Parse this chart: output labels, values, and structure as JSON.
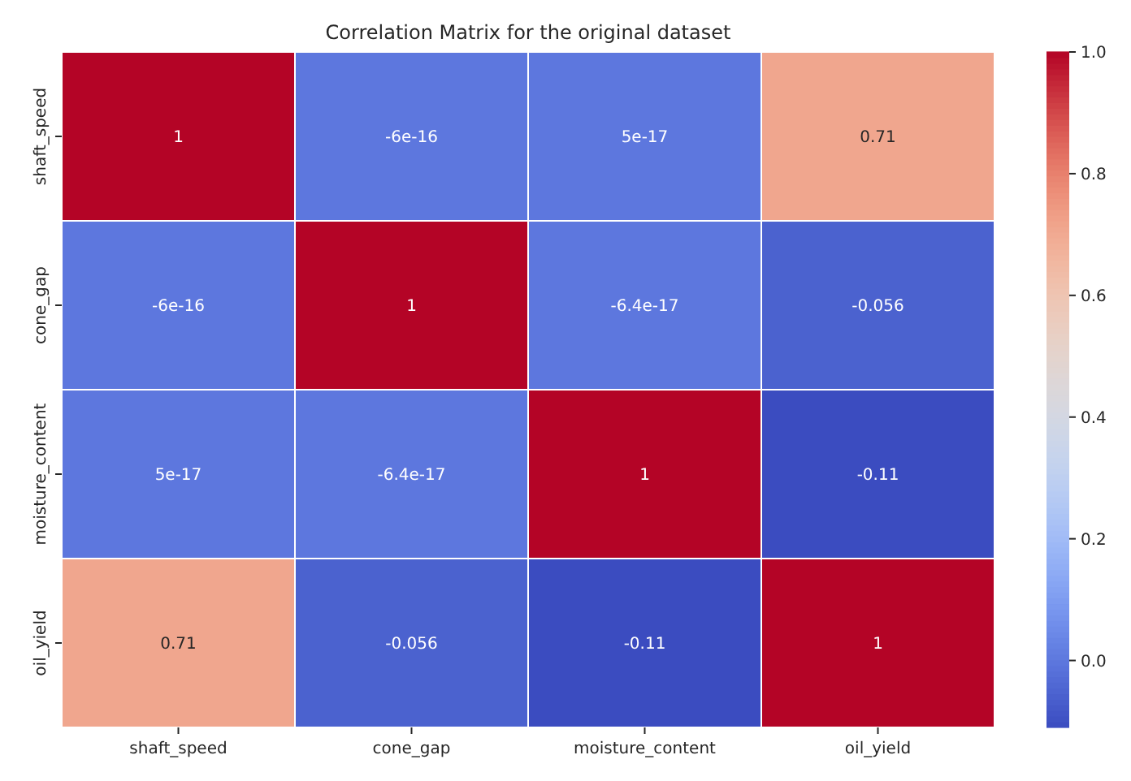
{
  "chart_data": {
    "type": "heatmap",
    "title": "Correlation Matrix for the original dataset",
    "categories": [
      "shaft_speed",
      "cone_gap",
      "moisture_content",
      "oil_yield"
    ],
    "y_categories": [
      "shaft_speed",
      "cone_gap",
      "moisture_content",
      "oil_yield"
    ],
    "cells": [
      [
        1,
        -6e-16,
        5e-17,
        0.71
      ],
      [
        -6e-16,
        1,
        -6.4e-17,
        -0.056
      ],
      [
        5e-17,
        -6.4e-17,
        1,
        -0.11
      ],
      [
        0.71,
        -0.056,
        -0.11,
        1
      ]
    ],
    "cell_labels": [
      [
        "1",
        "-6e-16",
        "5e-17",
        "0.71"
      ],
      [
        "-6e-16",
        "1",
        "-6.4e-17",
        "-0.056"
      ],
      [
        "5e-17",
        "-6.4e-17",
        "1",
        "-0.11"
      ],
      [
        "0.71",
        "-0.056",
        "-0.11",
        "1"
      ]
    ],
    "clim": [
      -0.11,
      1
    ],
    "cticks": [
      {
        "value": 0,
        "label": "0.0"
      },
      {
        "value": 0.2,
        "label": "0.2"
      },
      {
        "value": 0.4,
        "label": "0.4"
      },
      {
        "value": 0.6,
        "label": "0.6"
      },
      {
        "value": 0.8,
        "label": "0.8"
      },
      {
        "value": 1,
        "label": "1.0"
      }
    ]
  }
}
